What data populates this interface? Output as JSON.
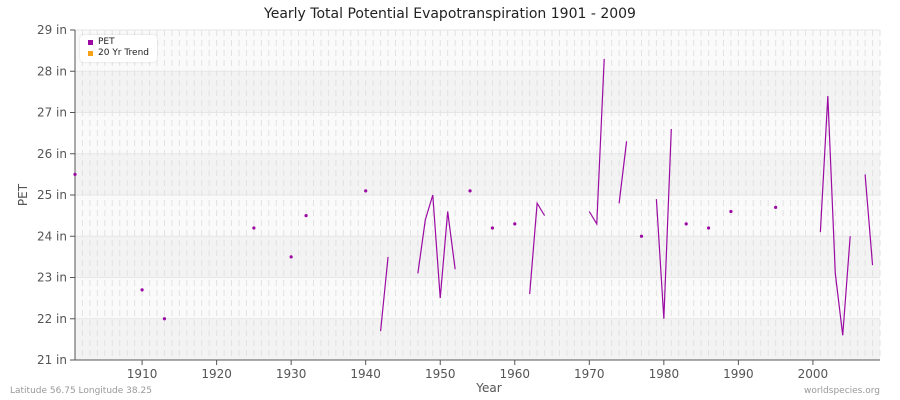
{
  "title": "Yearly Total Potential Evapotranspiration 1901 - 2009",
  "footer": {
    "location": "Latitude 56.75 Longitude 38.25",
    "source": "worldspecies.org"
  },
  "legend": [
    {
      "label": "PET",
      "color": "#9b0aa3"
    },
    {
      "label": "20 Yr Trend",
      "color": "#f5a11a"
    }
  ],
  "chart_data": {
    "type": "line",
    "title": "Yearly Total Potential Evapotranspiration 1901 - 2009",
    "xlabel": "Year",
    "ylabel": "PET",
    "xlim": [
      1901,
      2009
    ],
    "ylim": [
      21,
      29
    ],
    "y_unit": "in",
    "x_ticks": [
      1910,
      1920,
      1930,
      1940,
      1950,
      1960,
      1970,
      1980,
      1990,
      2000
    ],
    "y_ticks": [
      "21 in",
      "22 in",
      "23 in",
      "24 in",
      "25 in",
      "26 in",
      "27 in",
      "28 in",
      "29 in"
    ],
    "grid": true,
    "legend_position": "top-left",
    "series": [
      {
        "name": "PET",
        "color": "#9b0aa3",
        "points": [
          [
            1901,
            25.5
          ],
          [
            1910,
            22.7
          ],
          [
            1913,
            22.0
          ],
          [
            1925,
            24.2
          ],
          [
            1930,
            23.5
          ],
          [
            1932,
            24.5
          ],
          [
            1940,
            25.1
          ],
          [
            1942,
            21.7
          ],
          [
            1943,
            23.5
          ],
          [
            1947,
            23.1
          ],
          [
            1948,
            24.4
          ],
          [
            1949,
            25.0
          ],
          [
            1950,
            22.5
          ],
          [
            1951,
            24.6
          ],
          [
            1952,
            23.2
          ],
          [
            1954,
            25.1
          ],
          [
            1957,
            24.2
          ],
          [
            1960,
            24.3
          ],
          [
            1962,
            22.6
          ],
          [
            1963,
            24.8
          ],
          [
            1964,
            24.5
          ],
          [
            1970,
            24.6
          ],
          [
            1971,
            24.3
          ],
          [
            1972,
            28.3
          ],
          [
            1974,
            24.8
          ],
          [
            1975,
            26.3
          ],
          [
            1977,
            24.0
          ],
          [
            1979,
            24.9
          ],
          [
            1980,
            22.0
          ],
          [
            1981,
            26.6
          ],
          [
            1983,
            24.3
          ],
          [
            1986,
            24.2
          ],
          [
            1989,
            24.6
          ],
          [
            1995,
            24.7
          ],
          [
            2001,
            24.1
          ],
          [
            2002,
            27.4
          ],
          [
            2003,
            23.1
          ],
          [
            2004,
            21.6
          ],
          [
            2005,
            24.0
          ],
          [
            2007,
            25.5
          ],
          [
            2008,
            23.3
          ]
        ]
      },
      {
        "name": "20 Yr Trend",
        "color": "#f5a11a",
        "points": []
      }
    ]
  }
}
